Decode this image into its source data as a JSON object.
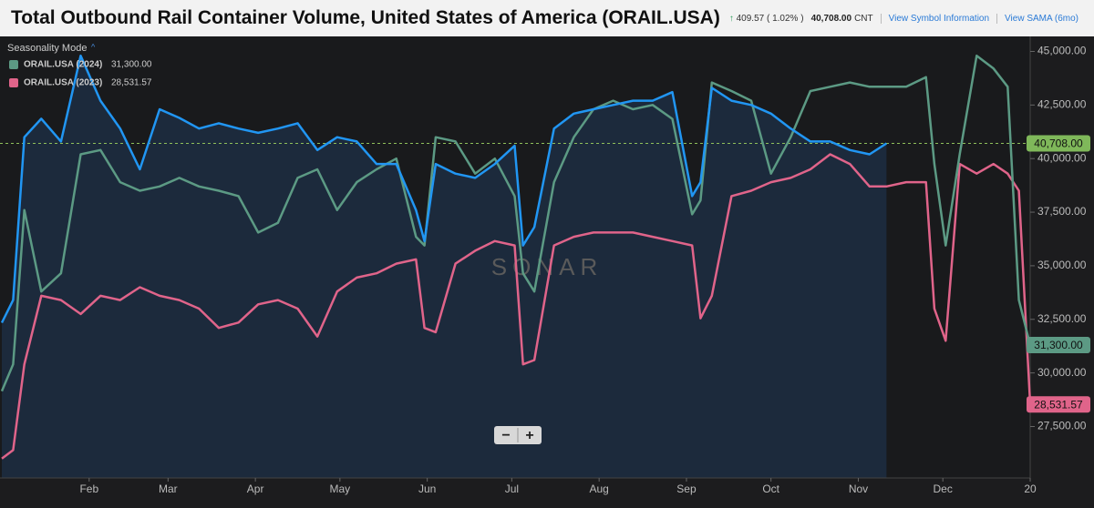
{
  "chart_data": {
    "type": "line",
    "title": "Total Outbound Rail Container Volume, United States of America (ORAIL.USA)",
    "change": "409.57",
    "change_pct": "( 1.02% )",
    "price": "40,708.00",
    "unit": "CNT",
    "link_symbol": "View Symbol Information",
    "link_sama": "View SAMA (6mo)",
    "mode_label": "Seasonality Mode",
    "watermark": "SONAR",
    "current_value": 40708,
    "x": [
      0,
      4,
      8,
      14,
      21,
      28,
      35,
      42,
      49,
      56,
      63,
      70,
      77,
      84,
      91,
      98,
      105,
      112,
      119,
      126,
      133,
      140,
      147,
      150,
      154,
      161,
      168,
      175,
      182,
      185,
      189,
      196,
      203,
      210,
      217,
      224,
      231,
      238,
      245,
      248,
      252,
      259,
      266,
      273,
      280,
      287,
      294,
      301,
      308,
      314,
      321,
      328,
      331,
      335,
      340,
      346,
      352,
      357,
      361,
      365
    ],
    "xlim": [
      0,
      365
    ],
    "xticks": [
      {
        "value": 31,
        "label": "Feb"
      },
      {
        "value": 59,
        "label": "Mar"
      },
      {
        "value": 90,
        "label": "Apr"
      },
      {
        "value": 120,
        "label": "May"
      },
      {
        "value": 151,
        "label": "Jun"
      },
      {
        "value": 181,
        "label": "Jul"
      },
      {
        "value": 212,
        "label": "Aug"
      },
      {
        "value": 243,
        "label": "Sep"
      },
      {
        "value": 273,
        "label": "Oct"
      },
      {
        "value": 304,
        "label": "Nov"
      },
      {
        "value": 334,
        "label": "Dec"
      },
      {
        "value": 365,
        "label": "20"
      }
    ],
    "ylim": [
      25100,
      45700
    ],
    "yticks": [
      {
        "value": 27500,
        "label": "27,500.00"
      },
      {
        "value": 30000,
        "label": "30,000.00"
      },
      {
        "value": 32500,
        "label": "32,500.00"
      },
      {
        "value": 35000,
        "label": "35,000.00"
      },
      {
        "value": 37500,
        "label": "37,500.00"
      },
      {
        "value": 40000,
        "label": "40,000.00"
      },
      {
        "value": 42500,
        "label": "42,500.00"
      },
      {
        "value": 45000,
        "label": "45,000.00"
      }
    ],
    "series": [
      {
        "color": "#2196f3",
        "last_label": "40,708.00",
        "values": [
          32340,
          33400,
          41000,
          41860,
          40800,
          44800,
          42700,
          41400,
          39500,
          42300,
          41900,
          41400,
          41650,
          41400,
          41200,
          41400,
          41650,
          40400,
          41000,
          40800,
          39750,
          39750,
          37600,
          36150,
          39750,
          39300,
          39100,
          39750,
          40600,
          35950,
          36800,
          41400,
          42100,
          42300,
          42500,
          42700,
          42700,
          43100,
          38250,
          38900,
          43300,
          42700,
          42500,
          42100,
          41400,
          40800,
          40800,
          40400,
          40200,
          40708,
          null,
          null,
          null,
          null,
          null,
          null,
          null,
          null,
          null,
          null
        ]
      },
      {
        "name": "ORAIL.USA (2024)",
        "color": "#5c9a84",
        "last_label": "31,300.00",
        "values": [
          29150,
          30400,
          37600,
          33800,
          34650,
          40200,
          40400,
          38900,
          38500,
          38700,
          39100,
          38700,
          38500,
          38250,
          36550,
          37000,
          39100,
          39500,
          37600,
          38900,
          39500,
          40000,
          36350,
          35950,
          41000,
          40800,
          39300,
          40000,
          38250,
          34650,
          33800,
          38900,
          41000,
          42300,
          42700,
          42300,
          42500,
          41850,
          37400,
          38050,
          43550,
          43150,
          42700,
          39300,
          41000,
          43150,
          43350,
          43550,
          43350,
          43350,
          43350,
          43800,
          39750,
          35950,
          40200,
          44800,
          44200,
          43350,
          33400,
          31300
        ]
      },
      {
        "name": "ORAIL.USA (2023)",
        "color": "#e0648a",
        "last_label": "28,531.57",
        "values": [
          26000,
          26400,
          30400,
          33600,
          33400,
          32750,
          33600,
          33400,
          34000,
          33600,
          33400,
          33000,
          32100,
          32350,
          33200,
          33400,
          33000,
          31700,
          33800,
          34450,
          34650,
          35100,
          35300,
          32100,
          31900,
          35100,
          35700,
          36150,
          35950,
          30400,
          30600,
          35950,
          36350,
          36550,
          36550,
          36550,
          36350,
          36150,
          35950,
          32550,
          33600,
          38250,
          38500,
          38900,
          39100,
          39500,
          40200,
          39750,
          38700,
          38700,
          38900,
          38900,
          33000,
          31500,
          39750,
          39300,
          39750,
          39300,
          38500,
          28531.57
        ]
      }
    ]
  }
}
